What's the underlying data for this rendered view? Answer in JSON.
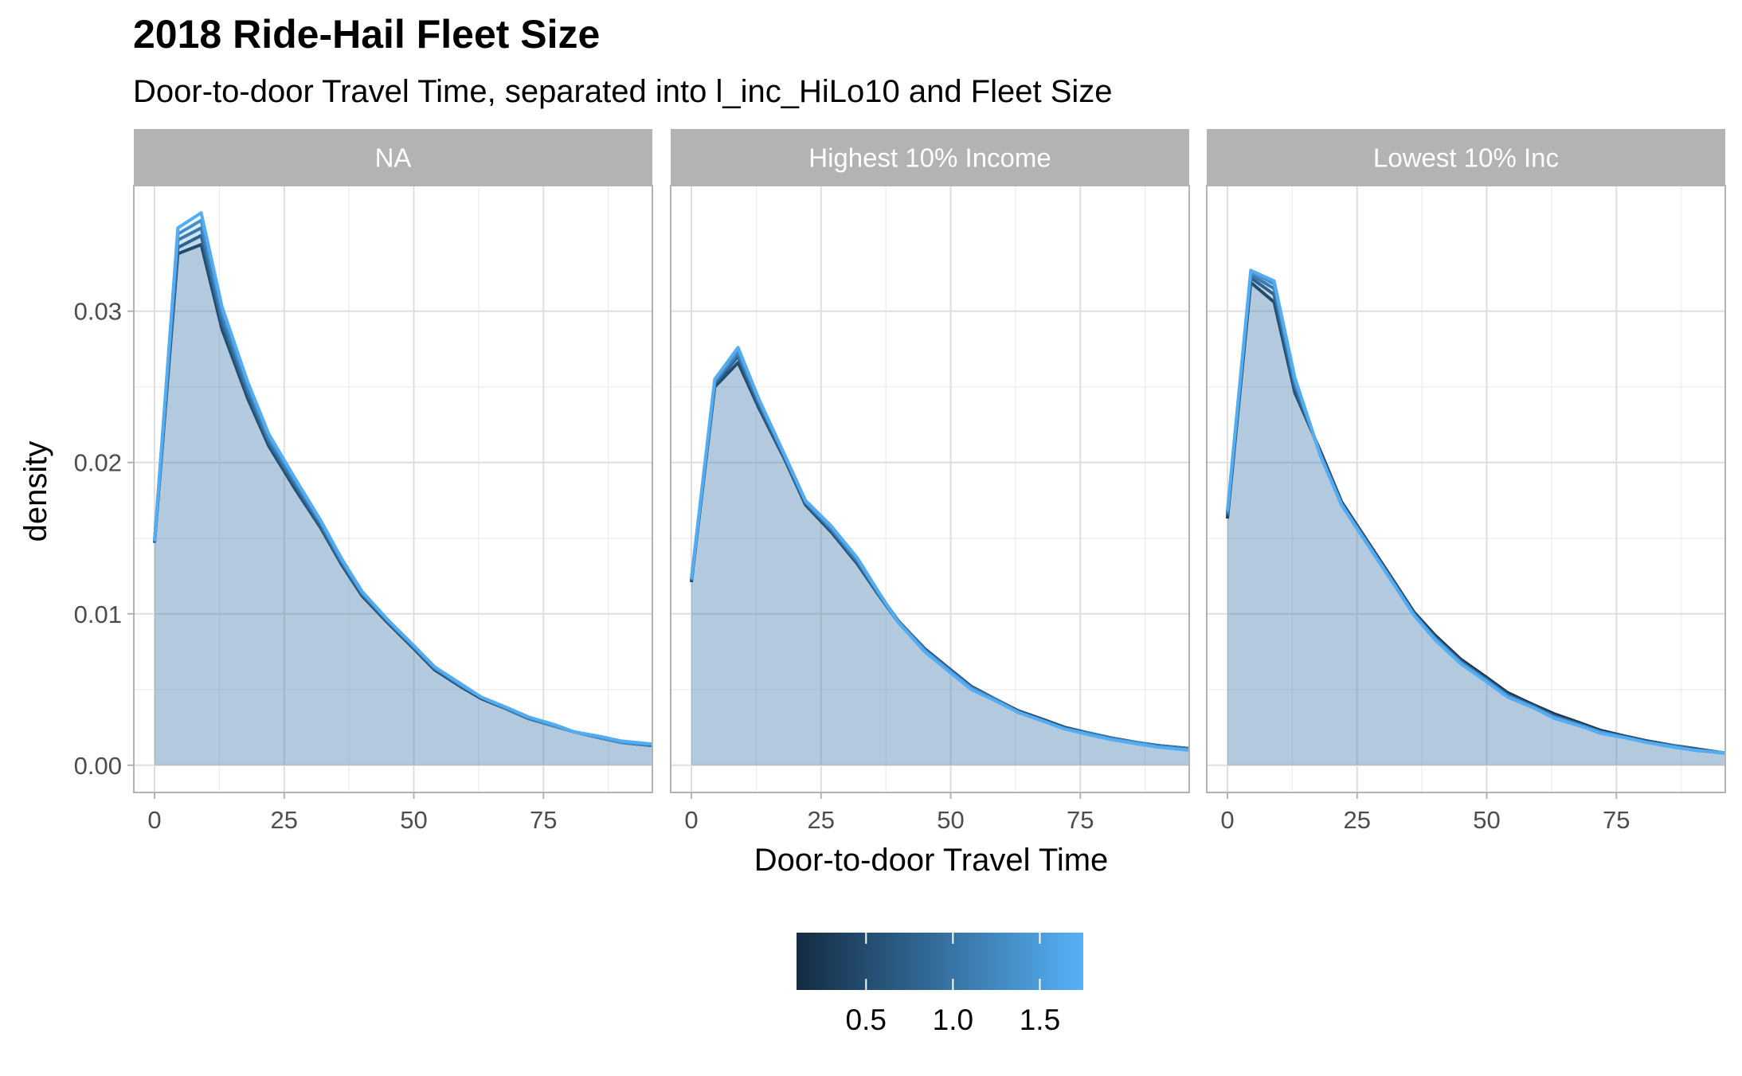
{
  "chart_data": {
    "type": "area",
    "title": "2018 Ride-Hail Fleet Size",
    "subtitle": "Door-to-door Travel Time, separated into l_inc_HiLo10 and Fleet Size",
    "xlabel": "Door-to-door Travel Time",
    "ylabel": "density",
    "xlim": [
      -4,
      96
    ],
    "ylim": [
      -0.0018,
      0.0383
    ],
    "x_ticks": [
      0,
      25,
      50,
      75
    ],
    "y_ticks": [
      0.0,
      0.01,
      0.02,
      0.03
    ],
    "y_tick_labels": [
      "0.00",
      "0.01",
      "0.02",
      "0.03"
    ],
    "grid": true,
    "x": [
      0,
      4.5,
      9,
      13,
      18,
      22,
      27,
      32,
      36,
      40,
      45,
      50,
      54,
      59,
      63,
      68,
      72,
      77,
      81,
      86,
      90,
      96
    ],
    "legend": {
      "title": "",
      "type": "colorbar",
      "position": "bottom",
      "range": [
        0.1,
        1.75
      ],
      "ticks": [
        0.5,
        1.0,
        1.5
      ],
      "tick_labels": [
        "0.5",
        "1.0",
        "1.5"
      ],
      "colors": [
        "#132b43",
        "#56b1f7"
      ]
    },
    "panels": [
      {
        "label": "NA",
        "series": [
          {
            "fleet": 0.2,
            "values": [
              0.0147,
              0.0338,
              0.0344,
              0.0288,
              0.0242,
              0.0211,
              0.0183,
              0.0157,
              0.0133,
              0.0112,
              0.0094,
              0.0077,
              0.0063,
              0.0052,
              0.0044,
              0.0037,
              0.0031,
              0.0026,
              0.0022,
              0.0018,
              0.0015,
              0.0013
            ]
          },
          {
            "fleet": 0.6,
            "values": [
              0.0147,
              0.0342,
              0.035,
              0.0292,
              0.0245,
              0.0213,
              0.0185,
              0.0158,
              0.0134,
              0.0113,
              0.0095,
              0.0078,
              0.0064,
              0.0053,
              0.0045,
              0.0037,
              0.0031,
              0.0026,
              0.0022,
              0.0018,
              0.0015,
              0.0013
            ]
          },
          {
            "fleet": 1.0,
            "values": [
              0.0148,
              0.0347,
              0.0355,
              0.0296,
              0.0248,
              0.0215,
              0.0187,
              0.016,
              0.0135,
              0.0114,
              0.0095,
              0.0078,
              0.0064,
              0.0053,
              0.0045,
              0.0037,
              0.0031,
              0.0026,
              0.0022,
              0.0018,
              0.0015,
              0.0013
            ]
          },
          {
            "fleet": 1.3,
            "values": [
              0.0148,
              0.0351,
              0.036,
              0.03,
              0.0251,
              0.0217,
              0.0189,
              0.0161,
              0.0136,
              0.0114,
              0.0096,
              0.0079,
              0.0065,
              0.0053,
              0.0045,
              0.0038,
              0.0032,
              0.0026,
              0.0022,
              0.0018,
              0.0015,
              0.0014
            ]
          },
          {
            "fleet": 1.7,
            "values": [
              0.0148,
              0.0355,
              0.0365,
              0.0303,
              0.0253,
              0.0219,
              0.019,
              0.0162,
              0.0137,
              0.0115,
              0.0096,
              0.0079,
              0.0065,
              0.0054,
              0.0045,
              0.0038,
              0.0032,
              0.0027,
              0.0022,
              0.0019,
              0.0016,
              0.0014
            ]
          }
        ]
      },
      {
        "label": "Highest 10% Income",
        "series": [
          {
            "fleet": 0.2,
            "values": [
              0.0121,
              0.025,
              0.0266,
              0.0236,
              0.0202,
              0.0172,
              0.0154,
              0.0133,
              0.0113,
              0.0094,
              0.0077,
              0.0063,
              0.0052,
              0.0043,
              0.0036,
              0.003,
              0.0025,
              0.0021,
              0.0018,
              0.0015,
              0.0013,
              0.0011
            ]
          },
          {
            "fleet": 0.6,
            "values": [
              0.0122,
              0.0252,
              0.027,
              0.0238,
              0.0203,
              0.0173,
              0.0155,
              0.0134,
              0.0114,
              0.0095,
              0.0077,
              0.0063,
              0.0052,
              0.0043,
              0.0036,
              0.003,
              0.0025,
              0.0021,
              0.0018,
              0.0015,
              0.0013,
              0.0011
            ]
          },
          {
            "fleet": 1.0,
            "values": [
              0.0122,
              0.0253,
              0.0272,
              0.024,
              0.0204,
              0.0174,
              0.0156,
              0.0135,
              0.0114,
              0.0095,
              0.0076,
              0.0062,
              0.0051,
              0.0043,
              0.0035,
              0.0029,
              0.0024,
              0.0021,
              0.0018,
              0.0015,
              0.0013,
              0.0011
            ]
          },
          {
            "fleet": 1.3,
            "values": [
              0.0123,
              0.0254,
              0.0274,
              0.0241,
              0.0204,
              0.0174,
              0.0157,
              0.0136,
              0.0114,
              0.0094,
              0.0076,
              0.0062,
              0.0051,
              0.0042,
              0.0035,
              0.0029,
              0.0024,
              0.002,
              0.0017,
              0.0015,
              0.0012,
              0.001
            ]
          },
          {
            "fleet": 1.7,
            "values": [
              0.0123,
              0.0255,
              0.0276,
              0.0242,
              0.0205,
              0.0175,
              0.0158,
              0.0137,
              0.0115,
              0.0094,
              0.0075,
              0.0061,
              0.005,
              0.0042,
              0.0035,
              0.0029,
              0.0024,
              0.002,
              0.0017,
              0.0014,
              0.0012,
              0.001
            ]
          }
        ]
      },
      {
        "label": "Lowest 10% Inc",
        "series": [
          {
            "fleet": 0.2,
            "values": [
              0.0163,
              0.0319,
              0.0306,
              0.0246,
              0.0207,
              0.0174,
              0.0148,
              0.0122,
              0.0101,
              0.0086,
              0.007,
              0.0058,
              0.0048,
              0.004,
              0.0034,
              0.0028,
              0.0023,
              0.0019,
              0.0016,
              0.0013,
              0.0011,
              0.0008
            ]
          },
          {
            "fleet": 0.6,
            "values": [
              0.0165,
              0.0322,
              0.0311,
              0.0249,
              0.0206,
              0.0173,
              0.0147,
              0.0121,
              0.01,
              0.0085,
              0.0069,
              0.0057,
              0.0047,
              0.0039,
              0.0033,
              0.0027,
              0.0022,
              0.0019,
              0.0016,
              0.0013,
              0.0011,
              0.0008
            ]
          },
          {
            "fleet": 1.0,
            "values": [
              0.0166,
              0.0324,
              0.0315,
              0.0252,
              0.0205,
              0.0173,
              0.0147,
              0.0121,
              0.01,
              0.0084,
              0.0068,
              0.0056,
              0.0046,
              0.0039,
              0.0032,
              0.0027,
              0.0022,
              0.0018,
              0.0015,
              0.0013,
              0.001,
              0.0008
            ]
          },
          {
            "fleet": 1.3,
            "values": [
              0.0167,
              0.0326,
              0.0318,
              0.0254,
              0.0204,
              0.0172,
              0.0146,
              0.012,
              0.0099,
              0.0084,
              0.0068,
              0.0056,
              0.0046,
              0.0038,
              0.0032,
              0.0026,
              0.0022,
              0.0018,
              0.0015,
              0.0012,
              0.001,
              0.0008
            ]
          },
          {
            "fleet": 1.7,
            "values": [
              0.0168,
              0.0327,
              0.032,
              0.0256,
              0.0204,
              0.0172,
              0.0146,
              0.012,
              0.0099,
              0.0083,
              0.0067,
              0.0055,
              0.0045,
              0.0038,
              0.0031,
              0.0026,
              0.0021,
              0.0018,
              0.0015,
              0.0012,
              0.001,
              0.0008
            ]
          }
        ]
      }
    ]
  }
}
